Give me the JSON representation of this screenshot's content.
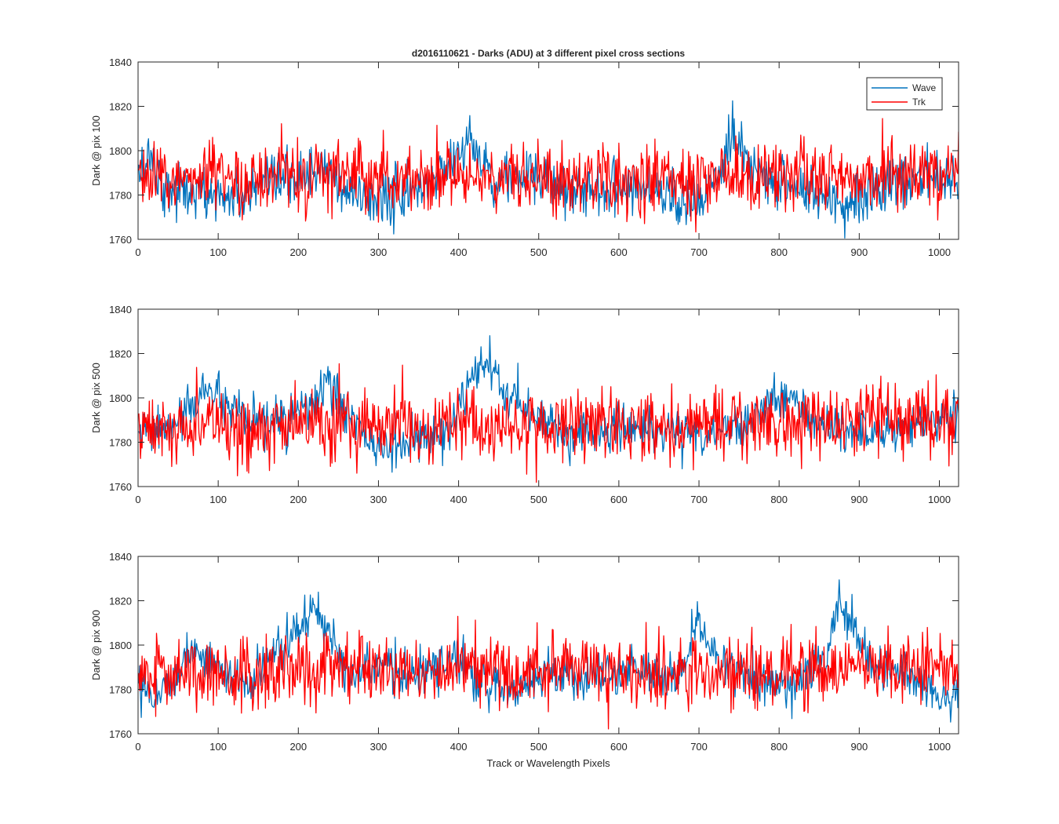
{
  "chart_data": {
    "type": "line",
    "title": "d2016110621 - Darks (ADU) at 3 different pixel cross sections",
    "xlabel": "Track or Wavelength Pixels",
    "xlim": [
      0,
      1024
    ],
    "ylim": [
      1760,
      1840
    ],
    "x_ticks": [
      "0",
      "100",
      "200",
      "300",
      "400",
      "500",
      "600",
      "700",
      "800",
      "900",
      "1000"
    ],
    "y_ticks": [
      "1760",
      "1780",
      "1800",
      "1820",
      "1840"
    ],
    "legend": {
      "location": "top-right",
      "entries": [
        {
          "name": "Wave",
          "color": "#0072BD"
        },
        {
          "name": "Trk",
          "color": "#FF0000"
        }
      ]
    },
    "grid": false,
    "subplots": [
      {
        "ylabel": "Dark @ pix 100",
        "series": [
          {
            "name": "Wave",
            "color": "#0072BD",
            "noise": 6,
            "baseline": [
              [
                0,
                1787
              ],
              [
                15,
                1800
              ],
              [
                30,
                1784
              ],
              [
                80,
                1780
              ],
              [
                130,
                1779
              ],
              [
                180,
                1786
              ],
              [
                230,
                1791
              ],
              [
                260,
                1781
              ],
              [
                300,
                1778
              ],
              [
                340,
                1780
              ],
              [
                370,
                1788
              ],
              [
                395,
                1797
              ],
              [
                410,
                1805
              ],
              [
                425,
                1797
              ],
              [
                445,
                1788
              ],
              [
                500,
                1787
              ],
              [
                560,
                1782
              ],
              [
                620,
                1785
              ],
              [
                670,
                1780
              ],
              [
                700,
                1775
              ],
              [
                725,
                1788
              ],
              [
                742,
                1807
              ],
              [
                760,
                1792
              ],
              [
                800,
                1786
              ],
              [
                840,
                1781
              ],
              [
                880,
                1776
              ],
              [
                910,
                1782
              ],
              [
                960,
                1786
              ],
              [
                1000,
                1790
              ],
              [
                1024,
                1787
              ]
            ]
          },
          {
            "name": "Trk",
            "color": "#FF0000",
            "noise": 8,
            "baseline": [
              [
                0,
                1787
              ],
              [
                250,
                1789
              ],
              [
                500,
                1787
              ],
              [
                750,
                1788
              ],
              [
                1024,
                1790
              ]
            ]
          }
        ]
      },
      {
        "ylabel": "Dark @ pix 500",
        "series": [
          {
            "name": "Wave",
            "color": "#0072BD",
            "noise": 5,
            "baseline": [
              [
                0,
                1784
              ],
              [
                40,
                1786
              ],
              [
                70,
                1797
              ],
              [
                88,
                1806
              ],
              [
                105,
                1797
              ],
              [
                140,
                1788
              ],
              [
                190,
                1791
              ],
              [
                220,
                1798
              ],
              [
                237,
                1806
              ],
              [
                260,
                1794
              ],
              [
                300,
                1776
              ],
              [
                340,
                1781
              ],
              [
                380,
                1782
              ],
              [
                400,
                1795
              ],
              [
                435,
                1817
              ],
              [
                460,
                1800
              ],
              [
                500,
                1792
              ],
              [
                540,
                1783
              ],
              [
                600,
                1787
              ],
              [
                660,
                1785
              ],
              [
                700,
                1784
              ],
              [
                740,
                1786
              ],
              [
                790,
                1797
              ],
              [
                810,
                1803
              ],
              [
                835,
                1790
              ],
              [
                880,
                1786
              ],
              [
                920,
                1783
              ],
              [
                960,
                1787
              ],
              [
                1000,
                1791
              ],
              [
                1024,
                1792
              ]
            ]
          },
          {
            "name": "Trk",
            "color": "#FF0000",
            "noise": 8,
            "baseline": [
              [
                0,
                1786
              ],
              [
                250,
                1788
              ],
              [
                500,
                1787
              ],
              [
                750,
                1787
              ],
              [
                1024,
                1791
              ]
            ]
          }
        ]
      },
      {
        "ylabel": "Dark @ pix 900",
        "series": [
          {
            "name": "Wave",
            "color": "#0072BD",
            "noise": 5,
            "baseline": [
              [
                0,
                1787
              ],
              [
                20,
                1776
              ],
              [
                40,
                1784
              ],
              [
                70,
                1799
              ],
              [
                90,
                1792
              ],
              [
                140,
                1781
              ],
              [
                180,
                1800
              ],
              [
                218,
                1815
              ],
              [
                240,
                1806
              ],
              [
                260,
                1790
              ],
              [
                300,
                1791
              ],
              [
                340,
                1785
              ],
              [
                380,
                1790
              ],
              [
                400,
                1797
              ],
              [
                430,
                1781
              ],
              [
                460,
                1779
              ],
              [
                500,
                1787
              ],
              [
                560,
                1785
              ],
              [
                620,
                1789
              ],
              [
                680,
                1786
              ],
              [
                697,
                1814
              ],
              [
                715,
                1796
              ],
              [
                760,
                1786
              ],
              [
                820,
                1783
              ],
              [
                860,
                1795
              ],
              [
                875,
                1822
              ],
              [
                890,
                1808
              ],
              [
                920,
                1790
              ],
              [
                960,
                1788
              ],
              [
                1000,
                1774
              ],
              [
                1024,
                1778
              ]
            ]
          },
          {
            "name": "Trk",
            "color": "#FF0000",
            "noise": 8,
            "baseline": [
              [
                0,
                1787
              ],
              [
                250,
                1789
              ],
              [
                500,
                1788
              ],
              [
                750,
                1787
              ],
              [
                1024,
                1792
              ]
            ]
          }
        ]
      }
    ]
  }
}
